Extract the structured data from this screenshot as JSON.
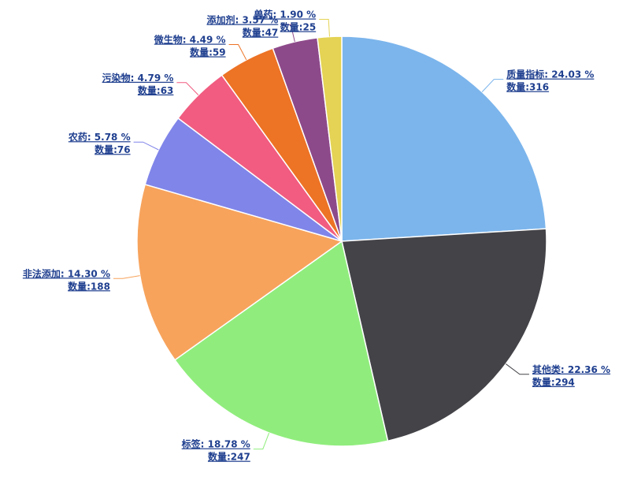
{
  "chart_data": {
    "type": "pie",
    "values": [
      24.03,
      22.36,
      18.78,
      14.3,
      5.78,
      4.79,
      4.49,
      3.57,
      1.9
    ],
    "value_labels": [
      "质量指标: 24.03 %",
      "其他类: 22.36 %",
      "标签: 18.78 %",
      "非法添加: 14.30 %",
      "农药: 5.78 %",
      "污染物: 4.79 %",
      "微生物: 4.49 %",
      "添加剂: 3.57 %",
      "兽药: 1.90 %"
    ],
    "counts": [
      316,
      294,
      247,
      188,
      76,
      63,
      59,
      47,
      25
    ],
    "count_labels": [
      "数量:316",
      "数量:294",
      "数量:247",
      "数量:188",
      "数量:76",
      "数量:63",
      "数量:59",
      "数量:47",
      "数量:25"
    ],
    "colors": [
      "#7cb5ec",
      "#434348",
      "#90ed7d",
      "#f7a35c",
      "#8085e9",
      "#f15c80",
      "#ed7325",
      "#8d4a8a",
      "#e4d354"
    ]
  }
}
